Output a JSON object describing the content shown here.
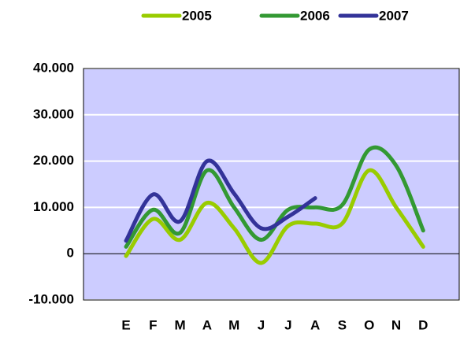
{
  "chart_data": {
    "type": "line",
    "categories": [
      "E",
      "F",
      "M",
      "A",
      "M",
      "J",
      "J",
      "A",
      "S",
      "O",
      "N",
      "D"
    ],
    "series": [
      {
        "name": "2005",
        "color": "#99cc00",
        "values": [
          -500,
          7500,
          3000,
          11000,
          5500,
          -2000,
          6000,
          6500,
          6500,
          18000,
          10000,
          1500
        ]
      },
      {
        "name": "2006",
        "color": "#339933",
        "values": [
          1500,
          9500,
          4500,
          18000,
          10000,
          3000,
          9500,
          10000,
          10500,
          22500,
          19000,
          5000
        ]
      },
      {
        "name": "2007",
        "color": "#333399",
        "values": [
          2800,
          12800,
          7000,
          20000,
          13000,
          5500,
          8000,
          12000,
          null,
          null,
          null,
          null
        ]
      }
    ],
    "ylim": [
      -10000,
      40000
    ],
    "yticks": [
      {
        "value": -10000,
        "label": "-10.000"
      },
      0,
      {
        "value": 10000,
        "label": "10.000"
      },
      {
        "value": 20000,
        "label": "20.000"
      },
      {
        "value": 30000,
        "label": "30.000"
      },
      {
        "value": 40000,
        "label": "40.000"
      }
    ],
    "grid": true,
    "legend": "top",
    "plot_background": "#ccccff"
  }
}
